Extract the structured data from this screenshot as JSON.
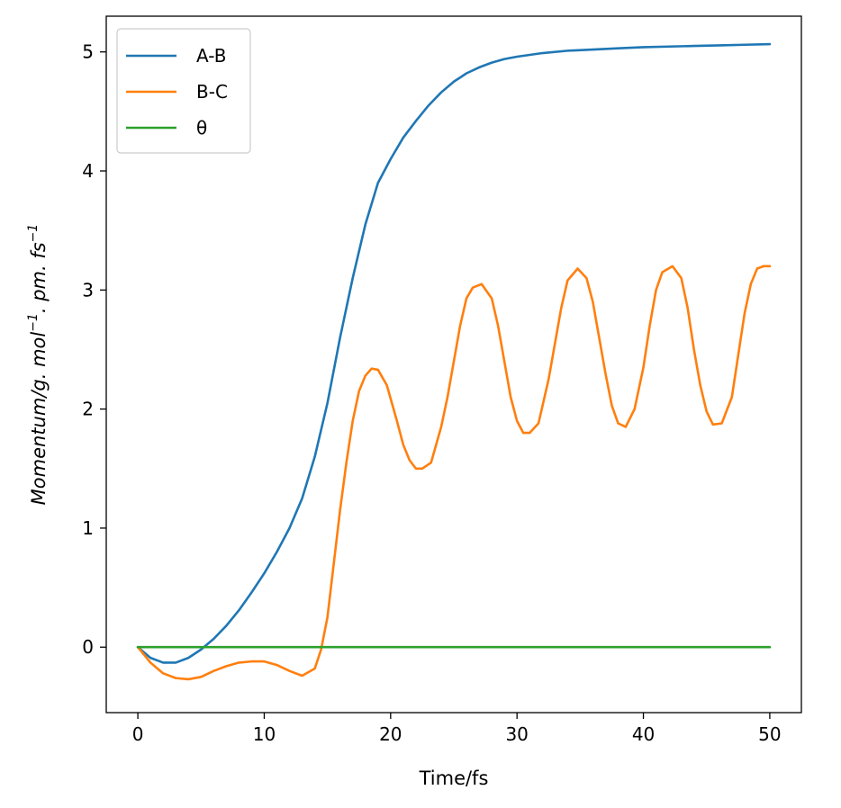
{
  "chart_data": {
    "type": "line",
    "title": "",
    "xlabel": "Time/fs",
    "ylabel": {
      "prefix": "Momentum/g. mol",
      "exp1": "−1",
      "middle": ". pm. fs",
      "exp2": "−1"
    },
    "xlim": [
      -2.5,
      52.5
    ],
    "ylim": [
      -0.55,
      5.3
    ],
    "xticks": [
      0,
      10,
      20,
      30,
      40,
      50
    ],
    "yticks": [
      0,
      1,
      2,
      3,
      4,
      5
    ],
    "grid": false,
    "legend_position": "top-left",
    "series": [
      {
        "name": "A-B",
        "color": "#1f77b4",
        "x": [
          0,
          1,
          2,
          3,
          4,
          5,
          6,
          7,
          8,
          9,
          10,
          11,
          12,
          13,
          14,
          15,
          16,
          17,
          18,
          19,
          20,
          21,
          22,
          23,
          24,
          25,
          26,
          27,
          28,
          29,
          30,
          32,
          34,
          36,
          38,
          40,
          42,
          44,
          46,
          48,
          50
        ],
        "y": [
          0,
          -0.09,
          -0.13,
          -0.13,
          -0.09,
          -0.02,
          0.07,
          0.18,
          0.31,
          0.46,
          0.62,
          0.8,
          1.0,
          1.25,
          1.6,
          2.05,
          2.6,
          3.1,
          3.55,
          3.9,
          4.1,
          4.28,
          4.42,
          4.55,
          4.66,
          4.75,
          4.82,
          4.87,
          4.91,
          4.94,
          4.96,
          4.99,
          5.01,
          5.02,
          5.03,
          5.04,
          5.045,
          5.05,
          5.055,
          5.06,
          5.065
        ]
      },
      {
        "name": "B-C",
        "color": "#ff7f0e",
        "x": [
          0,
          1,
          2,
          3,
          4,
          5,
          6,
          7,
          8,
          9,
          10,
          11,
          12,
          13,
          14,
          14.5,
          15,
          15.5,
          16,
          16.5,
          17,
          17.5,
          18,
          18.5,
          19,
          19.7,
          20.5,
          21,
          21.5,
          22,
          22.5,
          23.2,
          24,
          24.5,
          25,
          25.5,
          26,
          26.5,
          27.2,
          28,
          28.5,
          29,
          29.5,
          30,
          30.5,
          31,
          31.7,
          32.5,
          33,
          33.5,
          34,
          34.8,
          35.5,
          36,
          36.5,
          37,
          37.5,
          38,
          38.6,
          39.3,
          40,
          40.5,
          41,
          41.5,
          42.3,
          43,
          43.5,
          44,
          44.5,
          45,
          45.5,
          46.2,
          47,
          47.5,
          48,
          48.5,
          49,
          49.5,
          50
        ],
        "y": [
          0,
          -0.13,
          -0.22,
          -0.26,
          -0.27,
          -0.25,
          -0.2,
          -0.16,
          -0.13,
          -0.12,
          -0.12,
          -0.15,
          -0.2,
          -0.24,
          -0.18,
          -0.02,
          0.25,
          0.7,
          1.15,
          1.55,
          1.9,
          2.15,
          2.28,
          2.34,
          2.33,
          2.2,
          1.9,
          1.7,
          1.57,
          1.5,
          1.5,
          1.55,
          1.85,
          2.1,
          2.4,
          2.7,
          2.93,
          3.02,
          3.05,
          2.93,
          2.7,
          2.4,
          2.1,
          1.9,
          1.8,
          1.8,
          1.88,
          2.25,
          2.55,
          2.85,
          3.08,
          3.18,
          3.1,
          2.9,
          2.6,
          2.3,
          2.03,
          1.88,
          1.85,
          2.0,
          2.35,
          2.7,
          3.0,
          3.15,
          3.2,
          3.1,
          2.85,
          2.5,
          2.2,
          1.98,
          1.87,
          1.88,
          2.1,
          2.45,
          2.8,
          3.05,
          3.18,
          3.2,
          3.2
        ]
      },
      {
        "name": "θ",
        "color": "#2ca02c",
        "x": [
          0,
          50
        ],
        "y": [
          0,
          0
        ]
      }
    ]
  }
}
